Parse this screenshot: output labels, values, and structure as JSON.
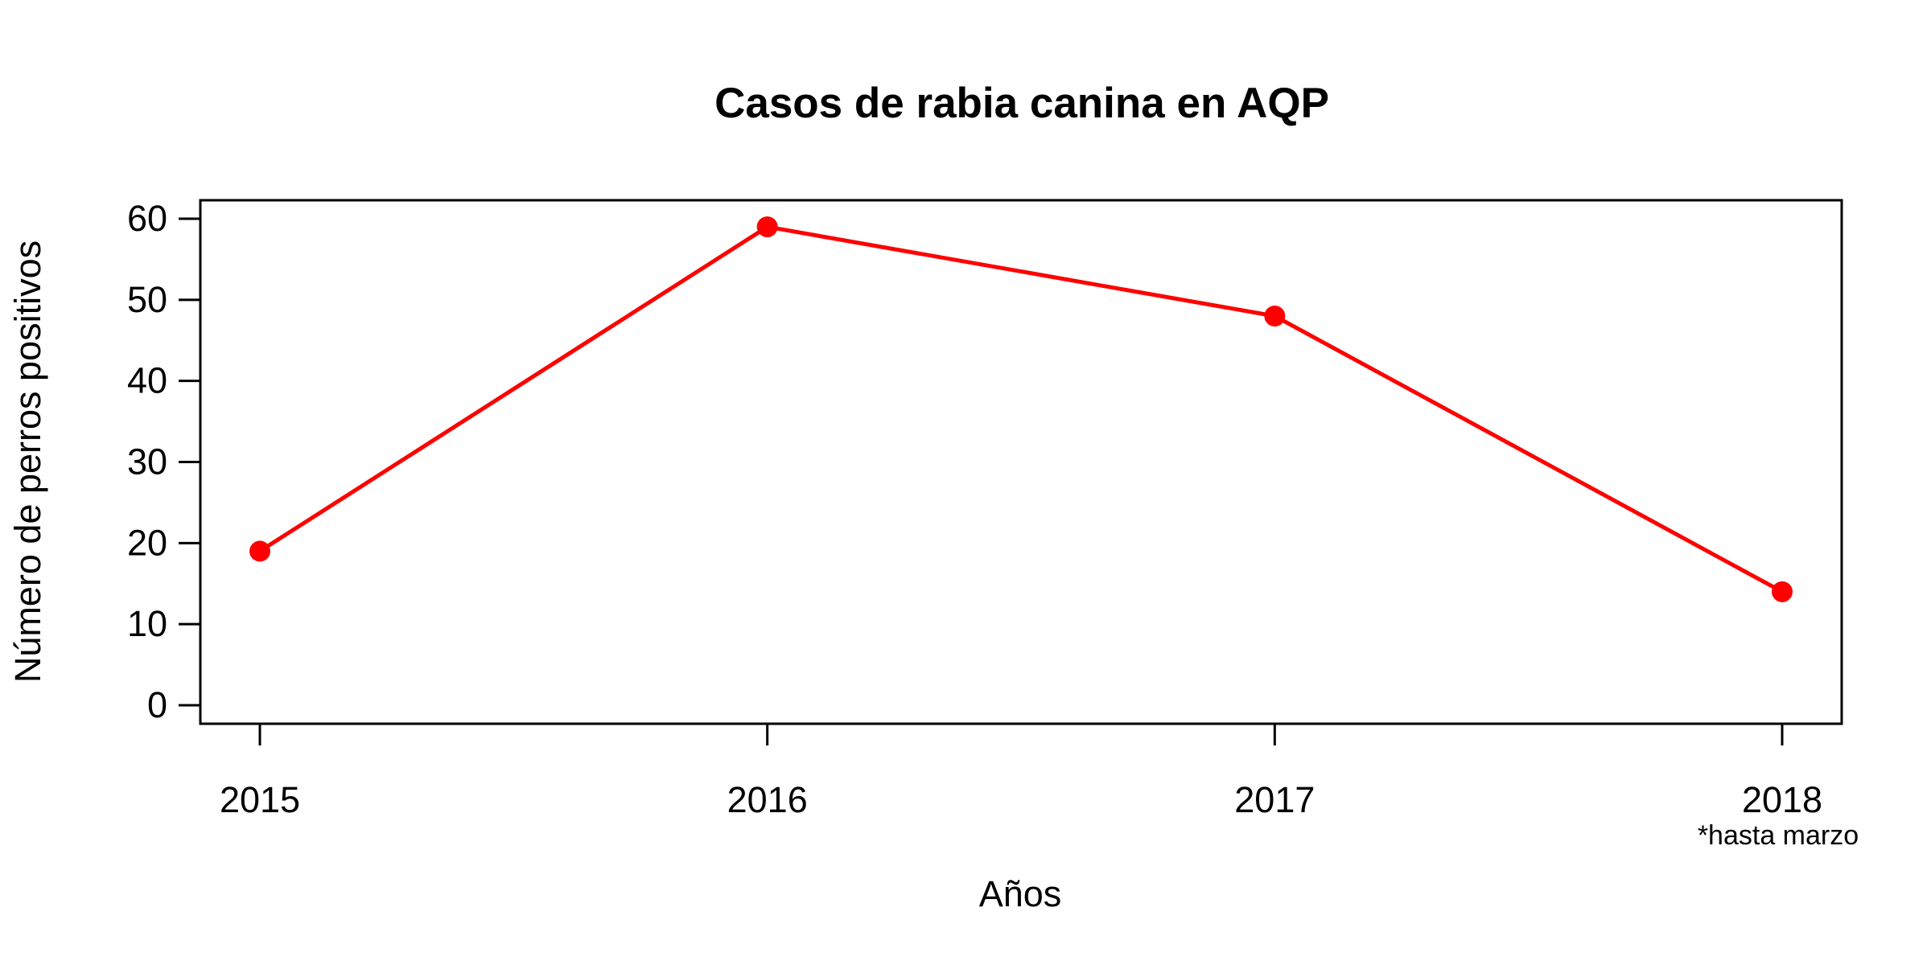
{
  "chart_data": {
    "type": "line",
    "title": "Casos de rabia canina en AQP",
    "xlabel": "Años",
    "ylabel": "Número de perros positivos",
    "x": [
      "2015",
      "2016",
      "2017",
      "2018"
    ],
    "x_note": "*hasta marzo",
    "series": [
      {
        "values": [
          19,
          59,
          48,
          14
        ],
        "color": "#ff0000",
        "marker": "filled-circle"
      }
    ],
    "ylim": [
      0,
      60
    ],
    "yticks": [
      0,
      10,
      20,
      30,
      40,
      50,
      60
    ],
    "grid": false,
    "legend": "none"
  }
}
